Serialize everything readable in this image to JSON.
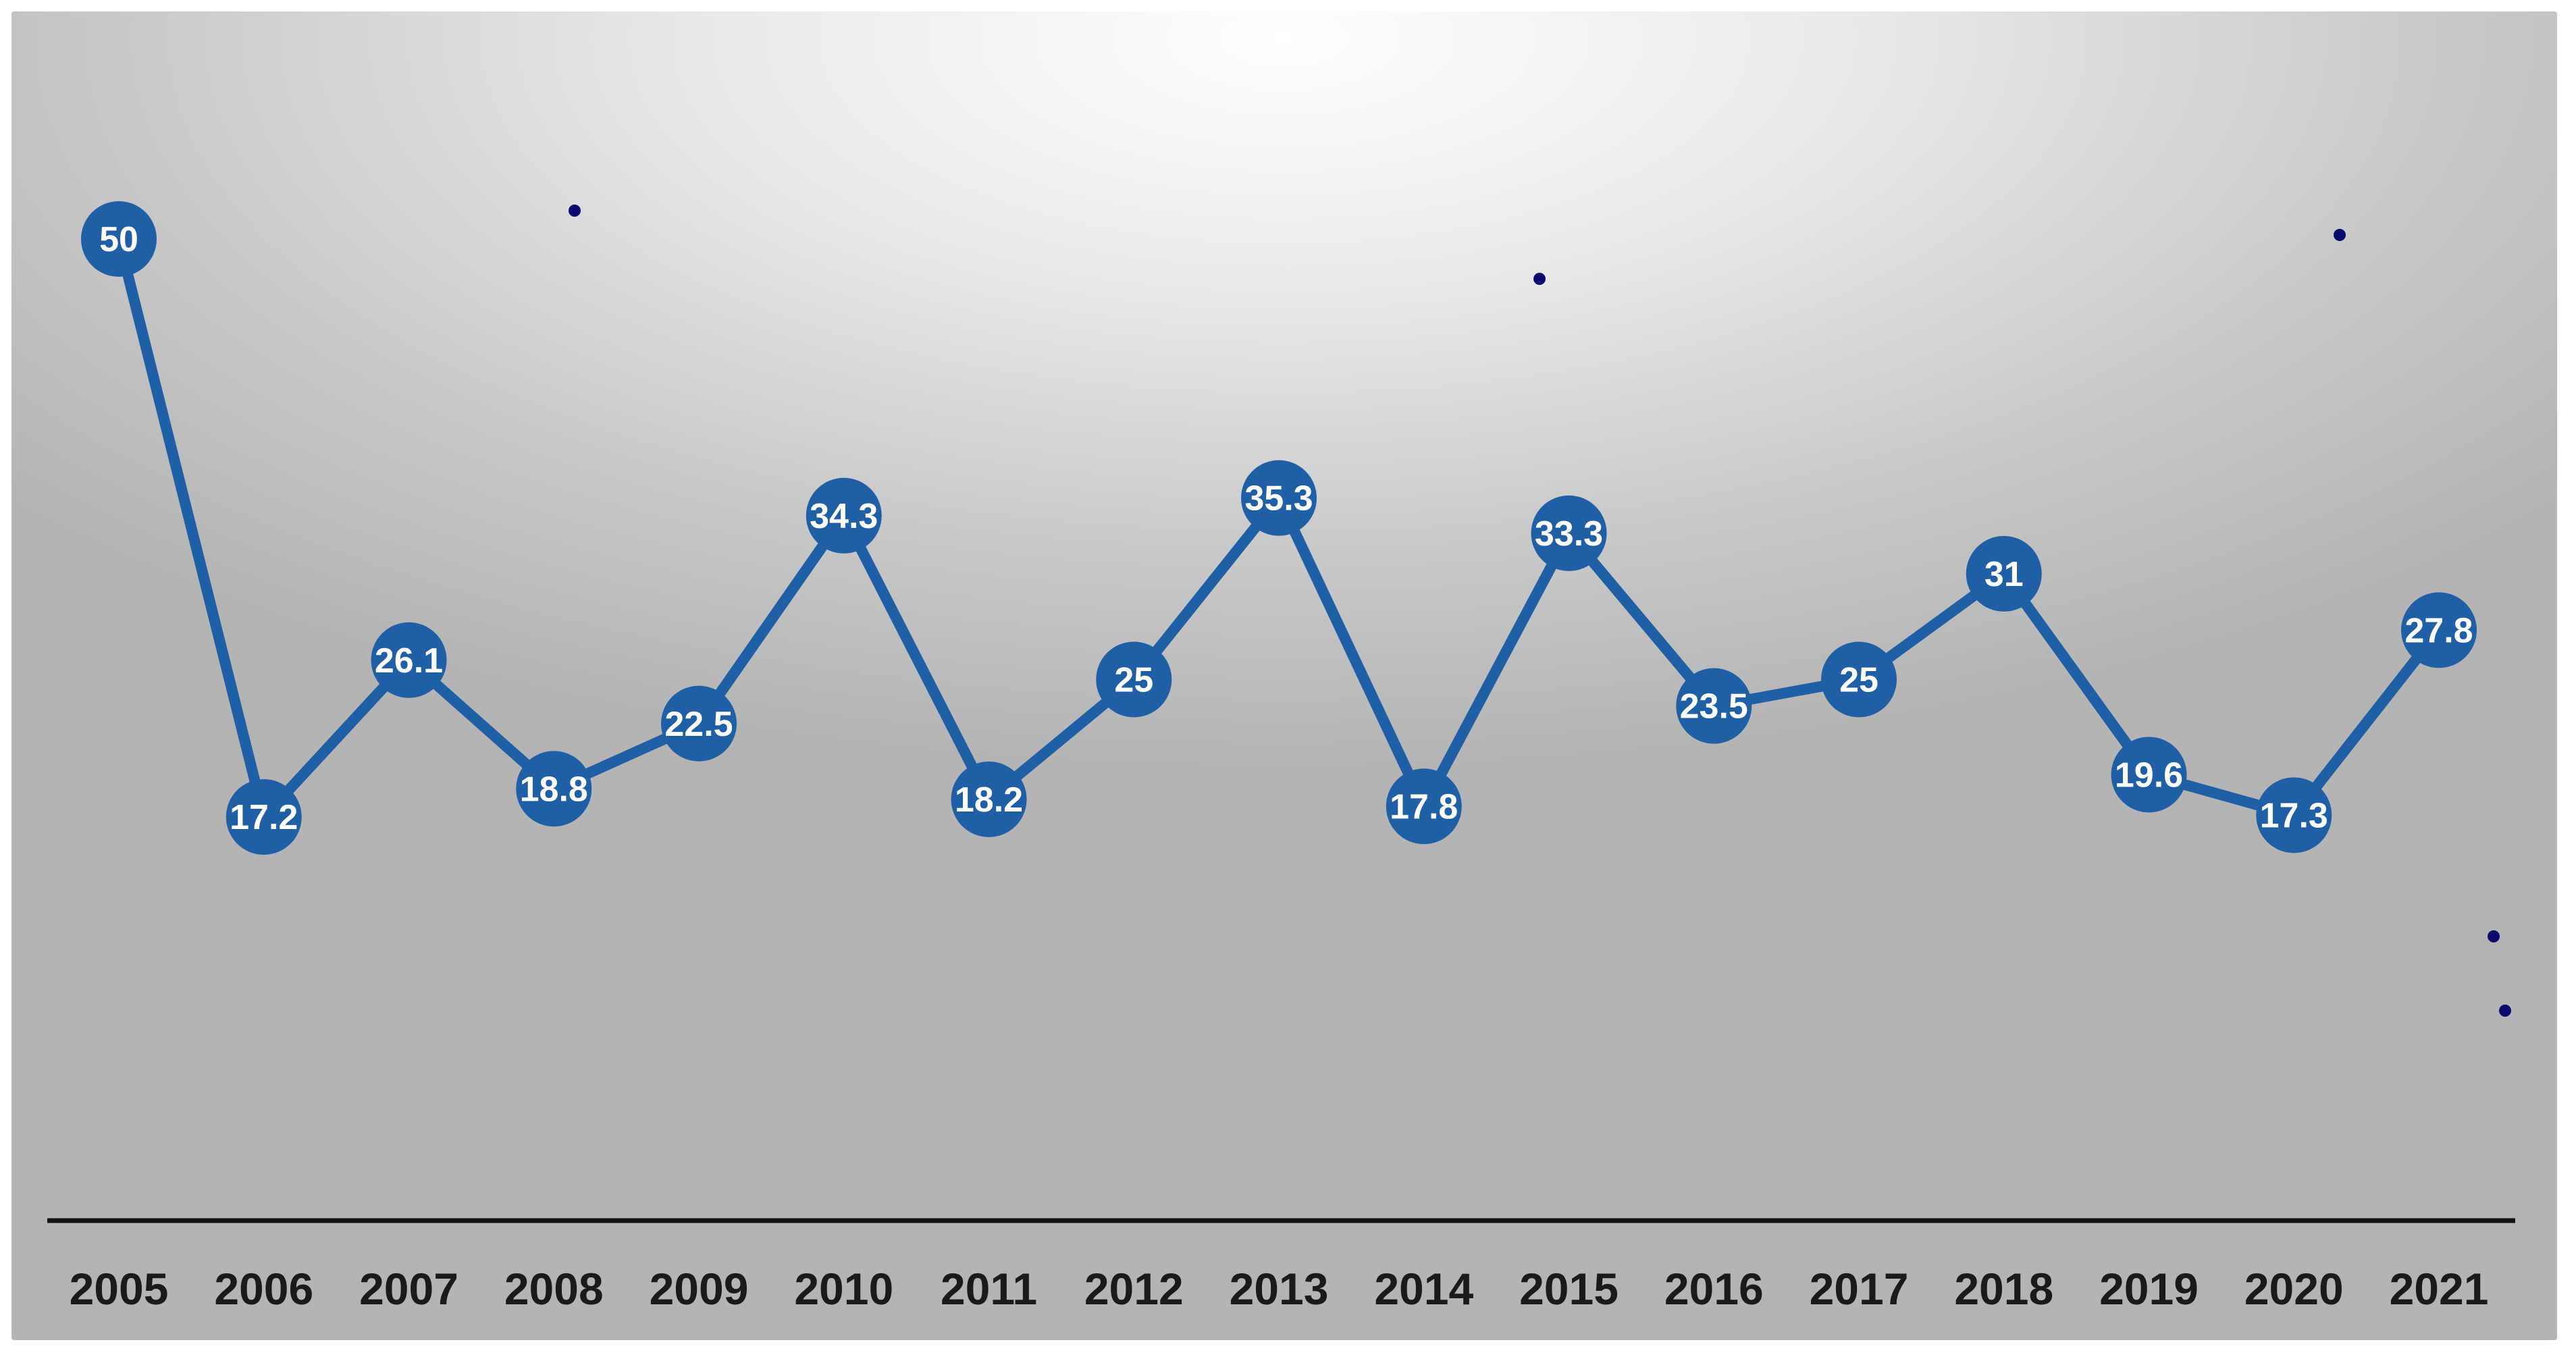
{
  "chart_data": {
    "type": "line",
    "title": "",
    "xlabel": "",
    "ylabel": "",
    "x": [
      "2005",
      "2006",
      "2007",
      "2008",
      "2009",
      "2010",
      "2011",
      "2012",
      "2013",
      "2014",
      "2015",
      "2016",
      "2017",
      "2018",
      "2019",
      "2020",
      "2021"
    ],
    "series": [
      {
        "values": [
          50,
          17.2,
          26.1,
          18.8,
          22.5,
          34.3,
          18.2,
          25,
          35.3,
          17.8,
          33.3,
          23.5,
          25,
          31,
          19.6,
          17.3,
          27.8
        ]
      }
    ],
    "ylim": [
      -5,
      52
    ],
    "grid": false,
    "legend": "none",
    "colors": {
      "line": "#1f5fa6",
      "marker": "#1f5fa6",
      "label_text": "#ffffff",
      "axis": "#111111",
      "stray_dots": "#0a0a6e"
    }
  }
}
